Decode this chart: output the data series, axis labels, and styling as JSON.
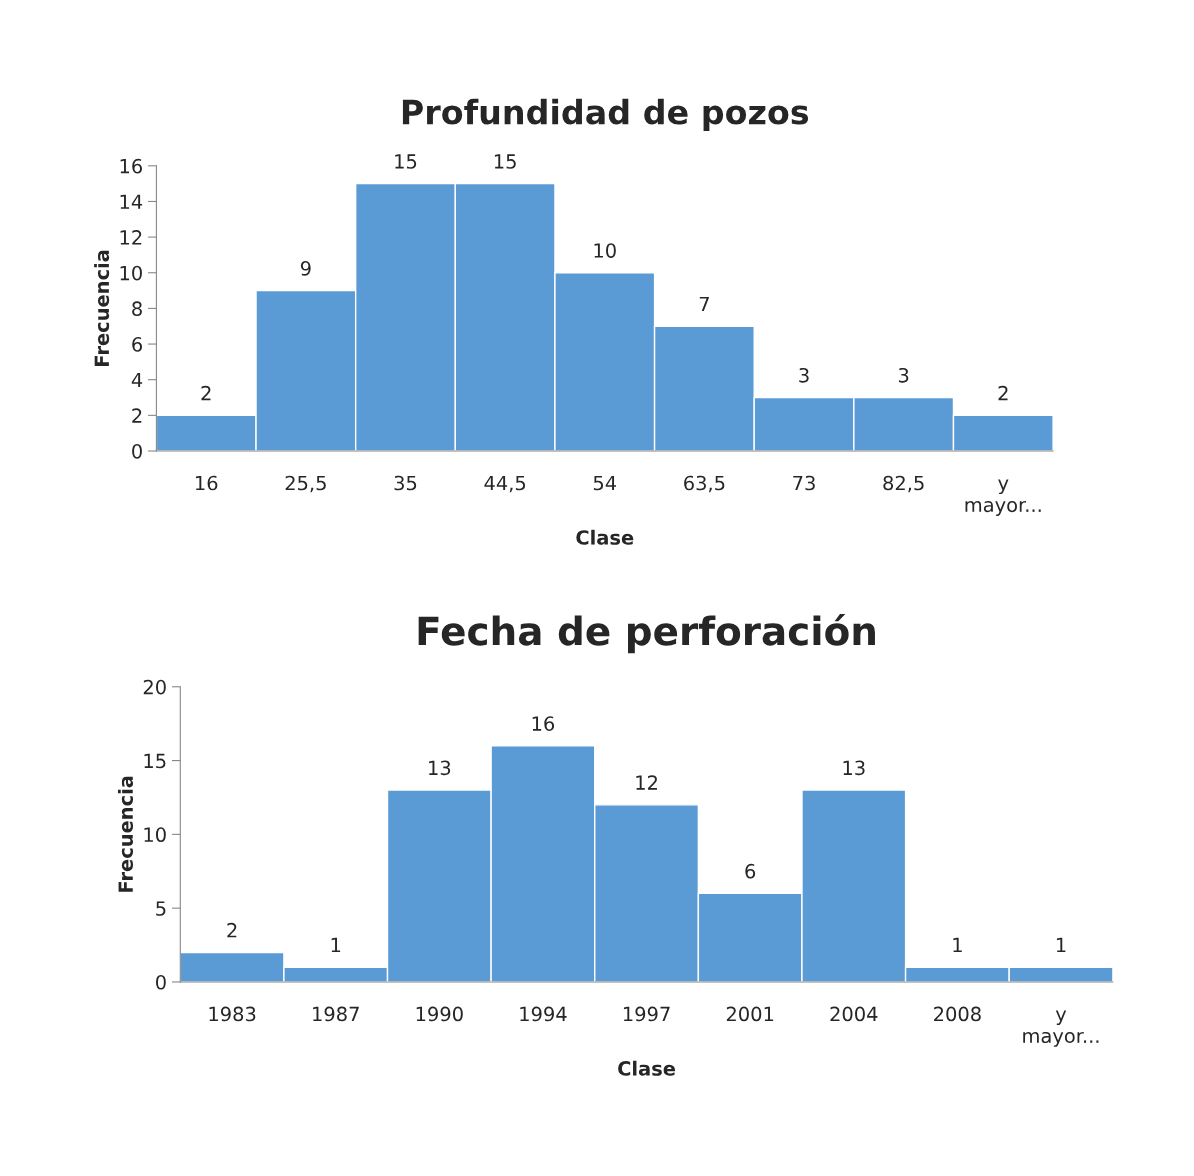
{
  "chart_data": [
    {
      "type": "bar",
      "title": "Profundidad de pozos",
      "xlabel": "Clase",
      "ylabel": "Frecuencia",
      "categories": [
        "16",
        "25,5",
        "35",
        "44,5",
        "54",
        "63,5",
        "73",
        "82,5",
        "y mayor..."
      ],
      "series": [
        {
          "color": "#5b9bd5",
          "values": [
            2,
            9,
            15,
            15,
            10,
            7,
            3,
            3,
            2
          ]
        }
      ],
      "ylim": [
        0,
        16
      ],
      "yticks": [
        0,
        2,
        4,
        6,
        8,
        10,
        12,
        14,
        16
      ],
      "data_labels": true,
      "grid": false,
      "legend": false
    },
    {
      "type": "bar",
      "title": "Fecha de perforación",
      "xlabel": "Clase",
      "ylabel": "Frecuencia",
      "categories": [
        "1983",
        "1987",
        "1990",
        "1994",
        "1997",
        "2001",
        "2004",
        "2008",
        "y mayor..."
      ],
      "series": [
        {
          "color": "#5b9bd5",
          "values": [
            2,
            1,
            13,
            16,
            12,
            6,
            13,
            1,
            1
          ]
        }
      ],
      "ylim": [
        0,
        20
      ],
      "yticks": [
        0,
        5,
        10,
        15,
        20
      ],
      "data_labels": true,
      "grid": false,
      "legend": false
    }
  ]
}
